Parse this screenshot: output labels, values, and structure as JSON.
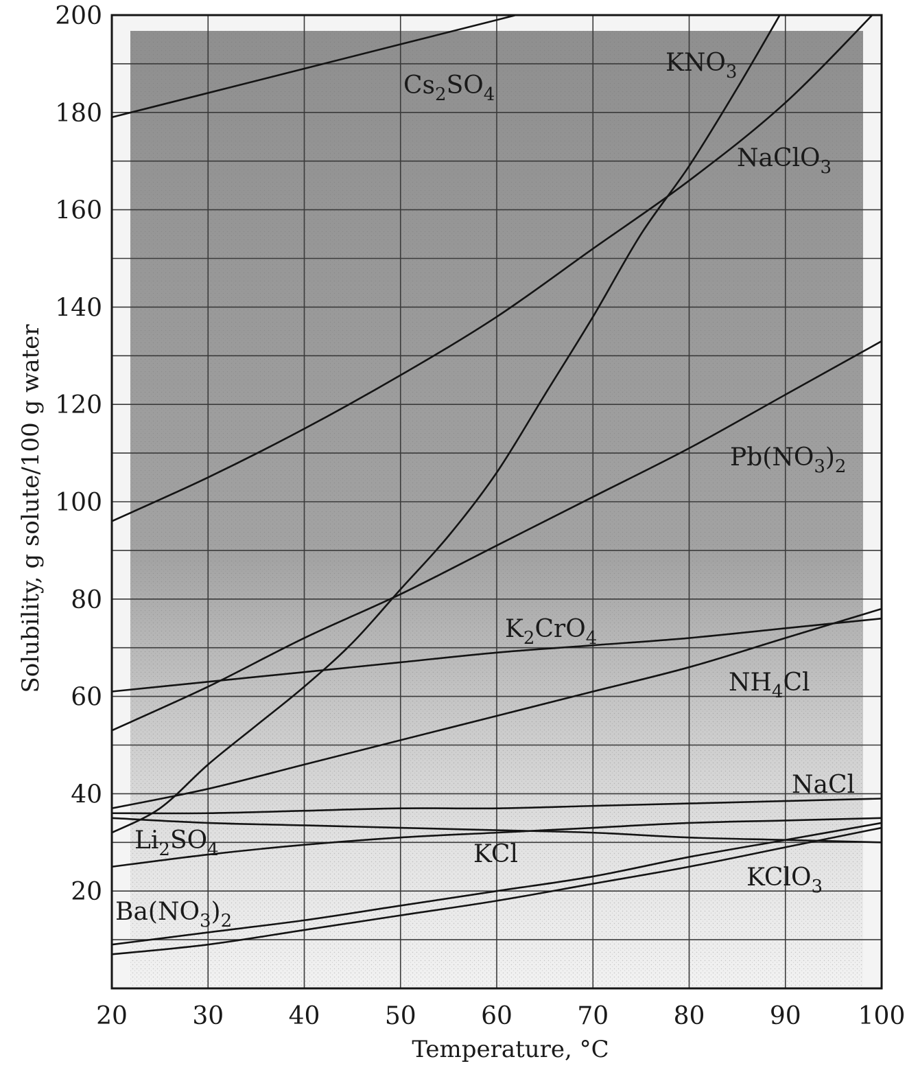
{
  "chart_data": {
    "type": "line",
    "xlabel": "Temperature, °C",
    "ylabel": "Solubility, g solute/100 g water",
    "xlim": [
      20,
      100
    ],
    "ylim": [
      0,
      200
    ],
    "xticks": [
      20,
      30,
      40,
      50,
      60,
      70,
      80,
      90,
      100
    ],
    "yticks": [
      20,
      40,
      60,
      80,
      100,
      120,
      140,
      160,
      180,
      200
    ],
    "grid": true,
    "series": [
      {
        "name": "Cs2SO4",
        "label": {
          "base": "Cs",
          "parts": [
            [
              "sub",
              "2"
            ],
            [
              "text",
              "SO"
            ],
            [
              "sub",
              "4"
            ]
          ]
        },
        "x": [
          20,
          30,
          40,
          50,
          60,
          68
        ],
        "y": [
          179,
          184,
          189,
          194,
          199,
          203
        ]
      },
      {
        "name": "KNO3",
        "label": {
          "base": "KNO",
          "parts": [
            [
              "sub",
              "3"
            ]
          ]
        },
        "x": [
          20,
          25,
          30,
          35,
          40,
          45,
          50,
          55,
          60,
          65,
          70,
          75,
          80,
          85,
          90
        ],
        "y": [
          32,
          37,
          46,
          54,
          62,
          71,
          82,
          93,
          106,
          122,
          138,
          155,
          169,
          185,
          202
        ]
      },
      {
        "name": "NaClO3",
        "label": {
          "base": "NaClO",
          "parts": [
            [
              "sub",
              "3"
            ]
          ]
        },
        "x": [
          20,
          30,
          40,
          50,
          60,
          70,
          80,
          90,
          100
        ],
        "y": [
          96,
          105,
          115,
          126,
          138,
          152,
          166,
          182,
          202
        ]
      },
      {
        "name": "Pb(NO3)2",
        "label": {
          "base": "Pb(NO",
          "parts": [
            [
              "sub",
              "3"
            ],
            [
              "text",
              ")"
            ],
            [
              "sub",
              "2"
            ]
          ]
        },
        "x": [
          20,
          30,
          40,
          50,
          60,
          70,
          80,
          90,
          100
        ],
        "y": [
          53,
          62,
          72,
          81,
          91,
          101,
          111,
          122,
          133
        ]
      },
      {
        "name": "K2CrO4",
        "label": {
          "base": "K",
          "parts": [
            [
              "sub",
              "2"
            ],
            [
              "text",
              "CrO"
            ],
            [
              "sub",
              "4"
            ]
          ]
        },
        "x": [
          20,
          30,
          40,
          50,
          60,
          70,
          80,
          90,
          100
        ],
        "y": [
          61,
          63,
          65,
          67,
          69,
          70.5,
          72,
          74,
          76
        ]
      },
      {
        "name": "NH4Cl",
        "label": {
          "base": "NH",
          "parts": [
            [
              "sub",
              "4"
            ],
            [
              "text",
              "Cl"
            ]
          ]
        },
        "x": [
          20,
          30,
          40,
          50,
          60,
          70,
          80,
          90,
          100
        ],
        "y": [
          37,
          41,
          46,
          51,
          56,
          61,
          66,
          72,
          78
        ]
      },
      {
        "name": "NaCl",
        "label": {
          "base": "NaCl",
          "parts": []
        },
        "x": [
          20,
          30,
          40,
          50,
          60,
          70,
          80,
          90,
          100
        ],
        "y": [
          36,
          36,
          36.5,
          37,
          37,
          37.5,
          38,
          38.5,
          39
        ]
      },
      {
        "name": "Li2SO4",
        "label": {
          "base": "Li",
          "parts": [
            [
              "sub",
              "2"
            ],
            [
              "text",
              "SO"
            ],
            [
              "sub",
              "4"
            ]
          ]
        },
        "x": [
          20,
          30,
          40,
          50,
          60,
          70,
          80,
          90,
          100
        ],
        "y": [
          35,
          34,
          33.5,
          33,
          32.5,
          32,
          31,
          30.5,
          30
        ]
      },
      {
        "name": "KCl",
        "label": {
          "base": "KCl",
          "parts": []
        },
        "x": [
          20,
          30,
          40,
          50,
          60,
          70,
          80,
          90,
          100
        ],
        "y": [
          25,
          27.5,
          29.5,
          31,
          32,
          33,
          34,
          34.5,
          35
        ]
      },
      {
        "name": "KClO3",
        "label": {
          "base": "KClO",
          "parts": [
            [
              "sub",
              "3"
            ]
          ]
        },
        "x": [
          20,
          30,
          40,
          50,
          60,
          70,
          80,
          90,
          100
        ],
        "y": [
          7,
          9,
          12,
          15,
          18,
          21.5,
          25,
          29,
          33
        ]
      },
      {
        "name": "Ba(NO3)2",
        "label": {
          "base": "Ba(NO",
          "parts": [
            [
              "sub",
              "3"
            ],
            [
              "text",
              ")"
            ],
            [
              "sub",
              "2"
            ]
          ]
        },
        "x": [
          20,
          30,
          40,
          50,
          60,
          70,
          80,
          90,
          100
        ],
        "y": [
          9,
          11.5,
          14,
          17,
          20,
          23,
          27,
          30.5,
          34
        ]
      }
    ]
  }
}
